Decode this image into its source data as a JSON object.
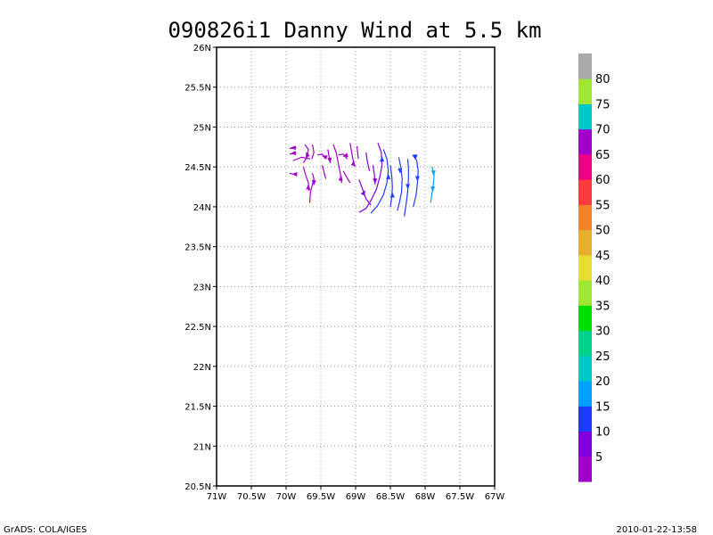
{
  "chart_data": {
    "type": "streamline",
    "title": "090826i1 Danny Wind at 5.5 km",
    "xlim": [
      -71,
      -67
    ],
    "ylim": [
      20.5,
      26
    ],
    "x_ticks": [
      {
        "value": -71,
        "label": "71W"
      },
      {
        "value": -70.5,
        "label": "70.5W"
      },
      {
        "value": -70,
        "label": "70W"
      },
      {
        "value": -69.5,
        "label": "69.5W"
      },
      {
        "value": -69,
        "label": "69W"
      },
      {
        "value": -68.5,
        "label": "68.5W"
      },
      {
        "value": -68,
        "label": "68W"
      },
      {
        "value": -67.5,
        "label": "67.5W"
      },
      {
        "value": -67,
        "label": "67W"
      }
    ],
    "y_ticks": [
      {
        "value": 20.5,
        "label": "20.5N"
      },
      {
        "value": 21,
        "label": "21N"
      },
      {
        "value": 21.5,
        "label": "21.5N"
      },
      {
        "value": 22,
        "label": "22N"
      },
      {
        "value": 22.5,
        "label": "22.5N"
      },
      {
        "value": 23,
        "label": "23N"
      },
      {
        "value": 23.5,
        "label": "23.5N"
      },
      {
        "value": 24,
        "label": "24N"
      },
      {
        "value": 24.5,
        "label": "24.5N"
      },
      {
        "value": 25,
        "label": "25N"
      },
      {
        "value": 25.5,
        "label": "25.5N"
      },
      {
        "value": 26,
        "label": "26N"
      }
    ],
    "grid": true,
    "colorbar": {
      "colors": [
        "#a000c8",
        "#8200dc",
        "#1e3cff",
        "#00a0ff",
        "#00c8c8",
        "#00d28c",
        "#00dc00",
        "#a0e632",
        "#e6dc32",
        "#e6af2d",
        "#f08228",
        "#fa3c3c",
        "#f00082",
        "#a000c8",
        "#00c8c8",
        "#a0e632",
        "#aaaaaa"
      ],
      "labels": [
        "5",
        "10",
        "15",
        "20",
        "25",
        "30",
        "35",
        "40",
        "45",
        "50",
        "55",
        "60",
        "65",
        "70",
        "75",
        "80"
      ]
    },
    "streamlines": [
      {
        "color": "#a000c8",
        "points": [
          [
            -69.95,
            24.73
          ],
          [
            -69.85,
            24.74
          ]
        ]
      },
      {
        "color": "#a000c8",
        "points": [
          [
            -69.95,
            24.66
          ],
          [
            -69.85,
            24.68
          ]
        ]
      },
      {
        "color": "#a000c8",
        "points": [
          [
            -69.9,
            24.58
          ],
          [
            -69.78,
            24.62
          ],
          [
            -69.65,
            24.6
          ]
        ]
      },
      {
        "color": "#a000c8",
        "points": [
          [
            -69.95,
            24.42
          ],
          [
            -69.85,
            24.4
          ]
        ]
      },
      {
        "color": "#a000c8",
        "points": [
          [
            -69.73,
            24.78
          ],
          [
            -69.68,
            24.72
          ],
          [
            -69.7,
            24.62
          ],
          [
            -69.75,
            24.55
          ]
        ]
      },
      {
        "color": "#a000c8",
        "points": [
          [
            -69.75,
            24.5
          ],
          [
            -69.72,
            24.4
          ],
          [
            -69.68,
            24.3
          ],
          [
            -69.67,
            24.2
          ]
        ]
      },
      {
        "color": "#a000c8",
        "points": [
          [
            -69.62,
            24.78
          ],
          [
            -69.6,
            24.68
          ],
          [
            -69.63,
            24.6
          ]
        ]
      },
      {
        "color": "#a000c8",
        "points": [
          [
            -69.62,
            24.42
          ],
          [
            -69.6,
            24.35
          ],
          [
            -69.62,
            24.28
          ],
          [
            -69.65,
            24.18
          ],
          [
            -69.66,
            24.05
          ]
        ]
      },
      {
        "color": "#a000c8",
        "points": [
          [
            -69.55,
            24.65
          ],
          [
            -69.48,
            24.66
          ],
          [
            -69.42,
            24.6
          ]
        ]
      },
      {
        "color": "#a000c8",
        "points": [
          [
            -69.48,
            24.52
          ],
          [
            -69.45,
            24.42
          ],
          [
            -69.43,
            24.35
          ]
        ]
      },
      {
        "color": "#a000c8",
        "points": [
          [
            -69.4,
            24.72
          ],
          [
            -69.38,
            24.62
          ],
          [
            -69.36,
            24.55
          ]
        ]
      },
      {
        "color": "#a000c8",
        "points": [
          [
            -69.32,
            24.78
          ],
          [
            -69.28,
            24.68
          ],
          [
            -69.25,
            24.55
          ],
          [
            -69.22,
            24.42
          ],
          [
            -69.2,
            24.3
          ]
        ]
      },
      {
        "color": "#a000c8",
        "points": [
          [
            -69.25,
            24.65
          ],
          [
            -69.18,
            24.66
          ],
          [
            -69.12,
            24.6
          ]
        ]
      },
      {
        "color": "#a000c8",
        "points": [
          [
            -69.18,
            24.45
          ],
          [
            -69.12,
            24.36
          ],
          [
            -69.08,
            24.3
          ]
        ]
      },
      {
        "color": "#a000c8",
        "points": [
          [
            -69.08,
            24.8
          ],
          [
            -69.06,
            24.7
          ],
          [
            -69.04,
            24.6
          ],
          [
            -69.01,
            24.5
          ]
        ]
      },
      {
        "color": "#a000c8",
        "points": [
          [
            -68.98,
            24.76
          ],
          [
            -68.97,
            24.68
          ],
          [
            -68.96,
            24.6
          ]
        ]
      },
      {
        "color": "#8200dc",
        "points": [
          [
            -68.95,
            24.34
          ],
          [
            -68.9,
            24.22
          ],
          [
            -68.85,
            24.1
          ],
          [
            -68.78,
            24.02
          ]
        ]
      },
      {
        "color": "#8200dc",
        "points": [
          [
            -68.85,
            24.68
          ],
          [
            -68.83,
            24.56
          ],
          [
            -68.8,
            24.45
          ]
        ]
      },
      {
        "color": "#8200dc",
        "points": [
          [
            -68.75,
            24.52
          ],
          [
            -68.73,
            24.4
          ],
          [
            -68.72,
            24.28
          ]
        ]
      },
      {
        "color": "#8200dc",
        "points": [
          [
            -68.68,
            24.8
          ],
          [
            -68.63,
            24.68
          ],
          [
            -68.62,
            24.52
          ],
          [
            -68.65,
            24.38
          ],
          [
            -68.7,
            24.22
          ],
          [
            -68.78,
            24.08
          ],
          [
            -68.85,
            23.98
          ],
          [
            -68.95,
            23.93
          ]
        ]
      },
      {
        "color": "#1e3cff",
        "points": [
          [
            -68.6,
            24.72
          ],
          [
            -68.55,
            24.6
          ],
          [
            -68.53,
            24.45
          ],
          [
            -68.55,
            24.3
          ],
          [
            -68.6,
            24.15
          ],
          [
            -68.68,
            24.02
          ],
          [
            -68.78,
            23.92
          ]
        ]
      },
      {
        "color": "#1e3cff",
        "points": [
          [
            -68.5,
            24.52
          ],
          [
            -68.48,
            24.38
          ],
          [
            -68.47,
            24.25
          ],
          [
            -68.48,
            24.12
          ],
          [
            -68.5,
            24.0
          ]
        ]
      },
      {
        "color": "#1e3cff",
        "points": [
          [
            -68.38,
            24.62
          ],
          [
            -68.35,
            24.5
          ],
          [
            -68.33,
            24.35
          ],
          [
            -68.34,
            24.18
          ],
          [
            -68.37,
            24.05
          ],
          [
            -68.4,
            23.95
          ]
        ]
      },
      {
        "color": "#1e3cff",
        "points": [
          [
            -68.25,
            24.6
          ],
          [
            -68.24,
            24.48
          ],
          [
            -68.24,
            24.35
          ],
          [
            -68.25,
            24.2
          ],
          [
            -68.27,
            24.05
          ],
          [
            -68.3,
            23.88
          ]
        ]
      },
      {
        "color": "#1e3cff",
        "points": [
          [
            -68.18,
            24.65
          ],
          [
            -68.12,
            24.58
          ],
          [
            -68.1,
            24.45
          ],
          [
            -68.11,
            24.3
          ],
          [
            -68.13,
            24.15
          ],
          [
            -68.17,
            24.0
          ]
        ]
      },
      {
        "color": "#00a0ff",
        "points": [
          [
            -67.9,
            24.5
          ],
          [
            -67.87,
            24.4
          ],
          [
            -67.88,
            24.3
          ],
          [
            -67.9,
            24.18
          ],
          [
            -67.92,
            24.05
          ]
        ]
      }
    ],
    "arrows": [
      {
        "color": "#a000c8",
        "x": -69.9,
        "y": 24.74,
        "dir": 180
      },
      {
        "color": "#a000c8",
        "x": -69.9,
        "y": 24.67,
        "dir": 190
      },
      {
        "color": "#a000c8",
        "x": -69.88,
        "y": 24.41,
        "dir": 175
      },
      {
        "color": "#a000c8",
        "x": -69.7,
        "y": 24.66,
        "dir": 110
      },
      {
        "color": "#a000c8",
        "x": -69.68,
        "y": 24.25,
        "dir": 85
      },
      {
        "color": "#a000c8",
        "x": -69.6,
        "y": 24.3,
        "dir": 270
      },
      {
        "color": "#a000c8",
        "x": -69.45,
        "y": 24.63,
        "dir": 160
      },
      {
        "color": "#a000c8",
        "x": -69.37,
        "y": 24.58,
        "dir": 275
      },
      {
        "color": "#a000c8",
        "x": -69.21,
        "y": 24.36,
        "dir": 80
      },
      {
        "color": "#a000c8",
        "x": -69.15,
        "y": 24.64,
        "dir": 200
      },
      {
        "color": "#a000c8",
        "x": -69.03,
        "y": 24.55,
        "dir": 80
      },
      {
        "color": "#8200dc",
        "x": -68.88,
        "y": 24.18,
        "dir": 60
      },
      {
        "color": "#8200dc",
        "x": -68.72,
        "y": 24.32,
        "dir": 270
      },
      {
        "color": "#1e3cff",
        "x": -68.62,
        "y": 24.6,
        "dir": 90
      },
      {
        "color": "#1e3cff",
        "x": -68.53,
        "y": 24.38,
        "dir": 90
      },
      {
        "color": "#1e3cff",
        "x": -68.47,
        "y": 24.15,
        "dir": 90
      },
      {
        "color": "#1e3cff",
        "x": -68.36,
        "y": 24.45,
        "dir": 270
      },
      {
        "color": "#1e3cff",
        "x": -68.25,
        "y": 24.25,
        "dir": 270
      },
      {
        "color": "#1e3cff",
        "x": -68.14,
        "y": 24.62,
        "dir": 270
      },
      {
        "color": "#1e3cff",
        "x": -68.11,
        "y": 24.35,
        "dir": 270
      },
      {
        "color": "#00a0ff",
        "x": -67.88,
        "y": 24.42,
        "dir": 270
      },
      {
        "color": "#00a0ff",
        "x": -67.89,
        "y": 24.22,
        "dir": 270
      }
    ]
  },
  "footer": {
    "left": "GrADS: COLA/IGES",
    "right": "2010-01-22-13:58"
  }
}
